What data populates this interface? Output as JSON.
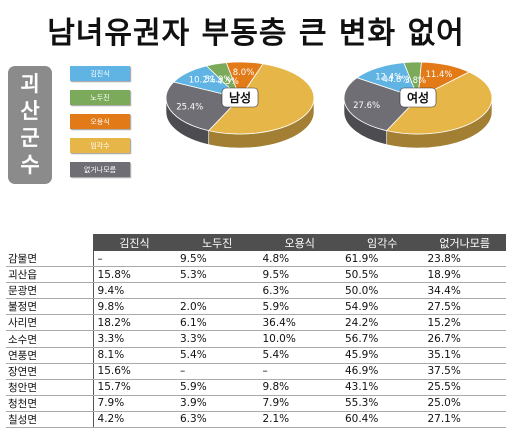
{
  "title": "남녀유권자 부동층 큰 변화 없어",
  "side_label": [
    "괴",
    "산",
    "군",
    "수"
  ],
  "colors": {
    "kim": "#5fb4e4",
    "no": "#7bab5a",
    "oh": "#e27a18",
    "im": "#e7b648",
    "none": "#6e6e74"
  },
  "legend": [
    "김진식",
    "노두진",
    "오용식",
    "임각수",
    "없거나모름"
  ],
  "chart_data": [
    {
      "type": "pie",
      "center_label": "남성",
      "categories": [
        "김진식",
        "노두진",
        "오용식",
        "임각수",
        "없거나모름"
      ],
      "values": [
        10.2,
        4.5,
        8.0,
        51.9,
        25.4
      ],
      "value_labels": [
        "10.2%",
        "4.5%",
        "8.0%",
        "51.9%",
        "25.4%"
      ]
    },
    {
      "type": "pie",
      "center_label": "여성",
      "categories": [
        "김진식",
        "노두진",
        "오용식",
        "임각수",
        "없거나모름"
      ],
      "values": [
        12.4,
        3.8,
        11.4,
        44.8,
        27.6
      ],
      "value_labels": [
        "12.4%",
        "3.8%",
        "11.4%",
        "44.8%",
        "27.6%"
      ]
    },
    {
      "type": "table",
      "columns": [
        "김진식",
        "노두진",
        "오용식",
        "임각수",
        "없거나모름"
      ],
      "rows": [
        {
          "name": "감물면",
          "cells": [
            "–",
            "9.5%",
            "4.8%",
            "61.9%",
            "23.8%"
          ]
        },
        {
          "name": "괴산읍",
          "cells": [
            "15.8%",
            "5.3%",
            "9.5%",
            "50.5%",
            "18.9%"
          ]
        },
        {
          "name": "문광면",
          "cells": [
            "9.4%",
            "",
            "6.3%",
            "50.0%",
            "34.4%"
          ]
        },
        {
          "name": "불정면",
          "cells": [
            "9.8%",
            "2.0%",
            "5.9%",
            "54.9%",
            "27.5%"
          ]
        },
        {
          "name": "사리면",
          "cells": [
            "18.2%",
            "6.1%",
            "36.4%",
            "24.2%",
            "15.2%"
          ]
        },
        {
          "name": "소수면",
          "cells": [
            "3.3%",
            "3.3%",
            "10.0%",
            "56.7%",
            "26.7%"
          ]
        },
        {
          "name": "연풍면",
          "cells": [
            "8.1%",
            "5.4%",
            "5.4%",
            "45.9%",
            "35.1%"
          ]
        },
        {
          "name": "장연면",
          "cells": [
            "15.6%",
            "–",
            "–",
            "46.9%",
            "37.5%"
          ]
        },
        {
          "name": "청안면",
          "cells": [
            "15.7%",
            "5.9%",
            "9.8%",
            "43.1%",
            "25.5%"
          ]
        },
        {
          "name": "청천면",
          "cells": [
            "7.9%",
            "3.9%",
            "7.9%",
            "55.3%",
            "25.0%"
          ]
        },
        {
          "name": "칠성면",
          "cells": [
            "4.2%",
            "6.3%",
            "2.1%",
            "60.4%",
            "27.1%"
          ]
        }
      ]
    }
  ]
}
